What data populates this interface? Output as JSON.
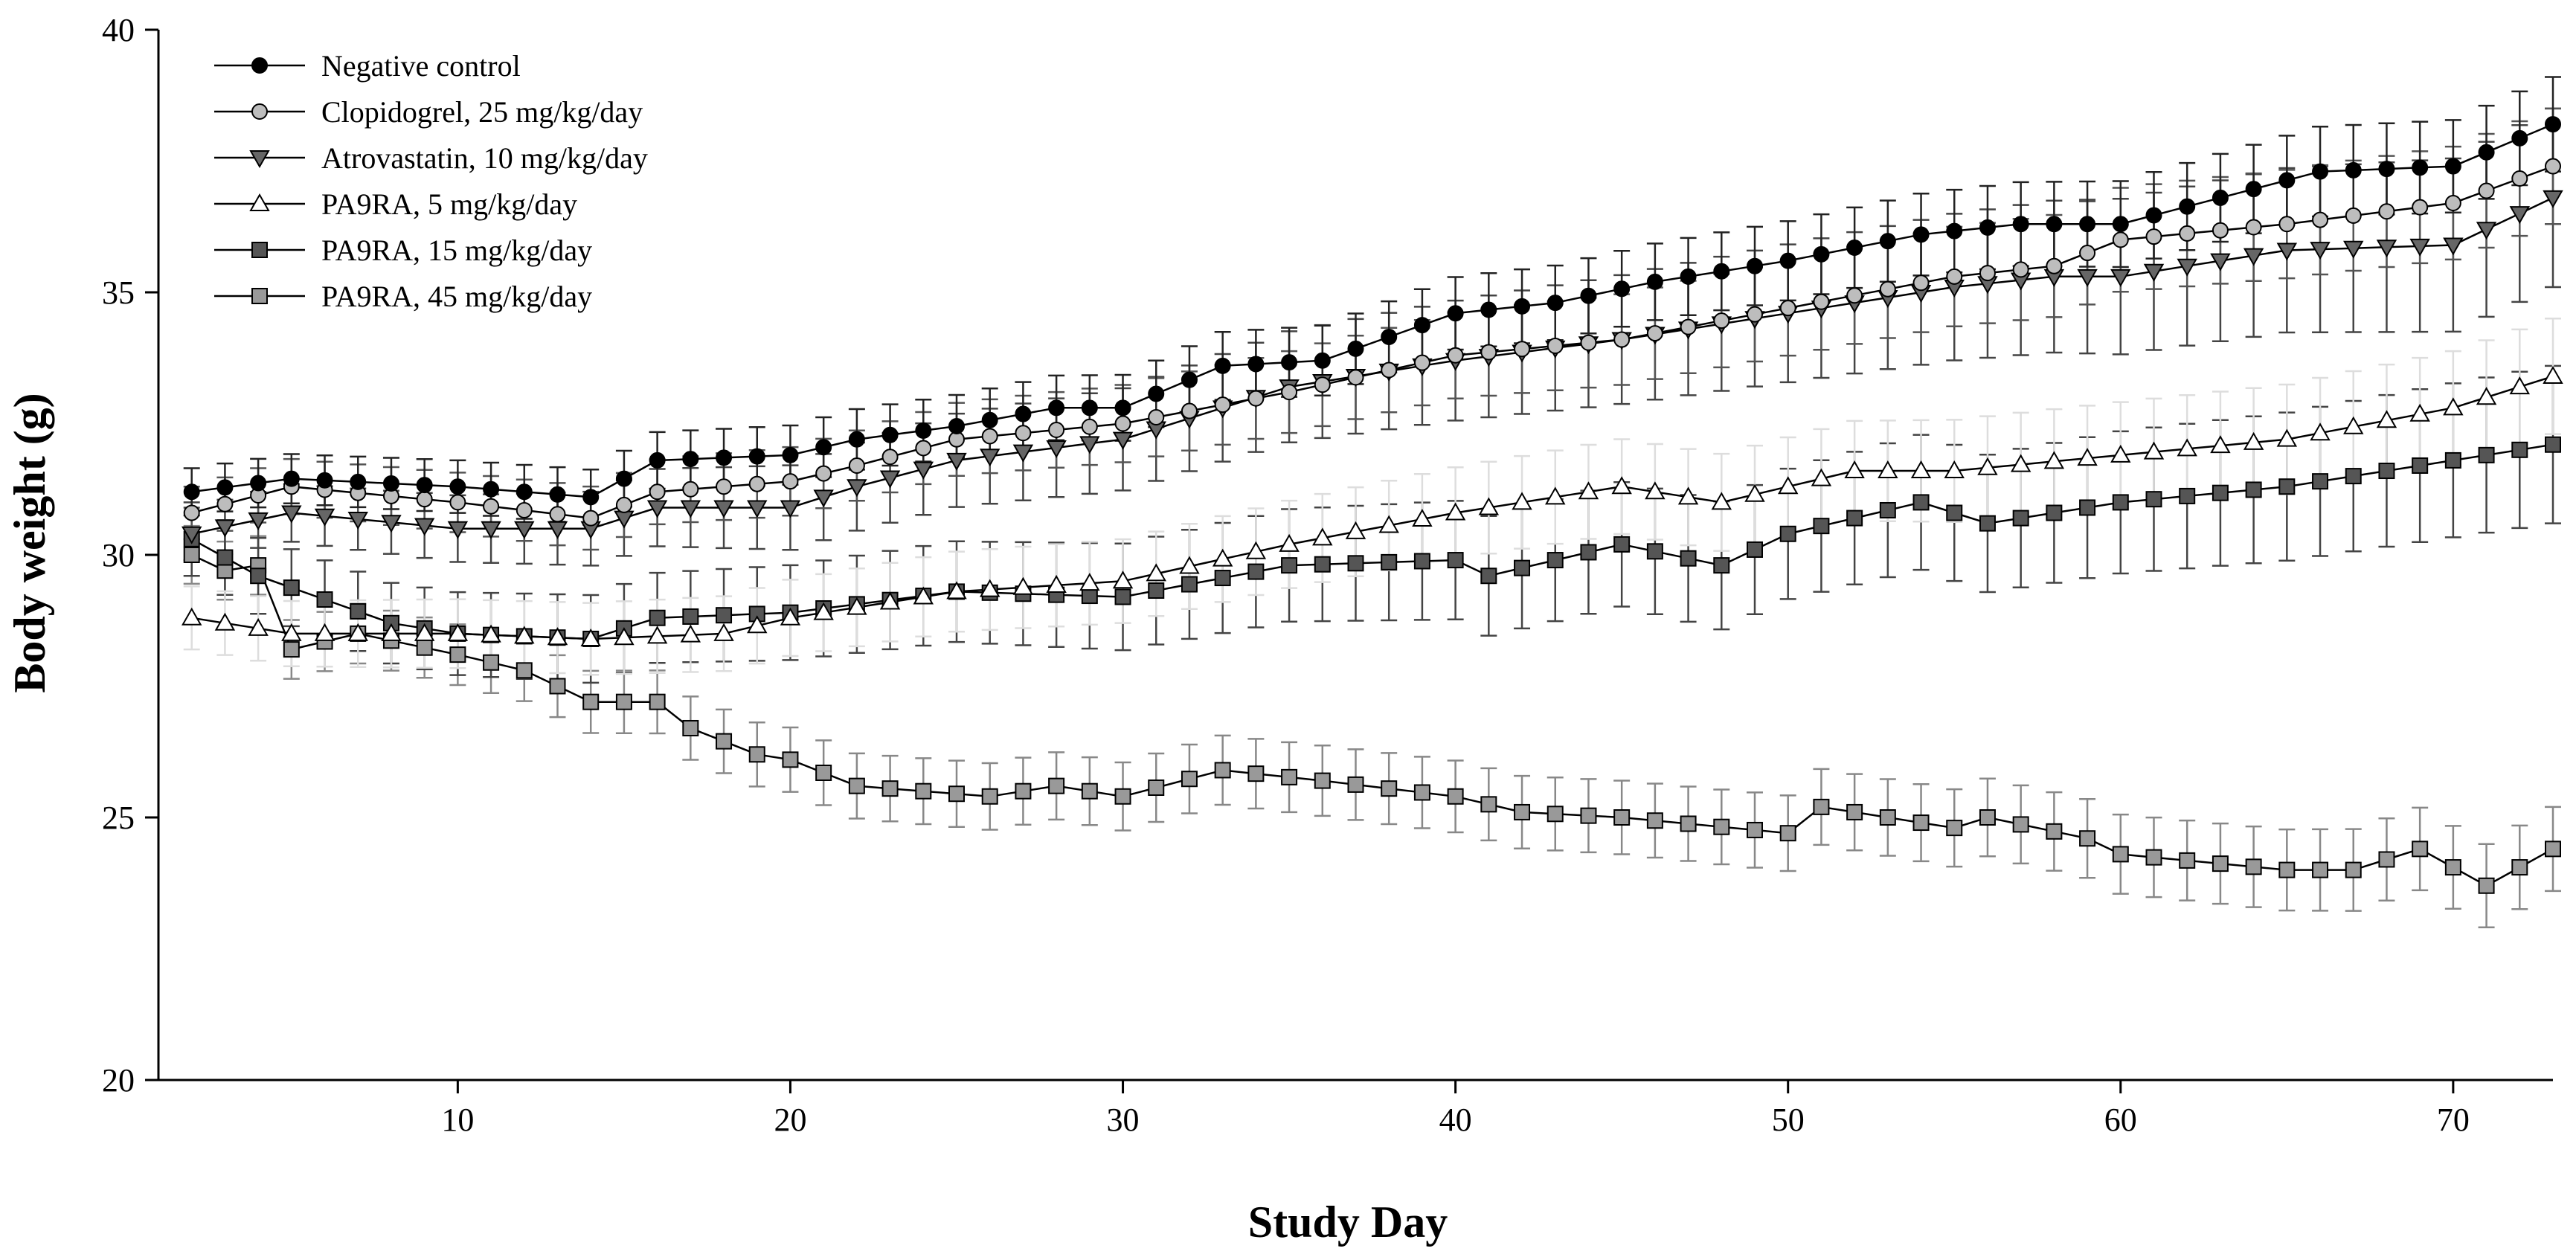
{
  "chart_data": {
    "type": "line",
    "title": "",
    "xlabel": "Study Day",
    "ylabel": "Body weight (g)",
    "xlim": [
      1,
      73
    ],
    "ylim": [
      20,
      40
    ],
    "xticks": [
      10,
      20,
      30,
      40,
      50,
      60,
      70
    ],
    "yticks": [
      20,
      25,
      30,
      35,
      40
    ],
    "xtick_labels": [
      "10",
      "20",
      "30",
      "40",
      "50",
      "60",
      "70"
    ],
    "ytick_labels": [
      "20",
      "25",
      "30",
      "35",
      "40"
    ],
    "legend_position": "top-left",
    "series": [
      {
        "name": "Negative control",
        "marker": "circle",
        "fill": "#000000",
        "error_color": "#222222",
        "start": 2,
        "end": 73,
        "err_start": 0.45,
        "err_end": 0.9,
        "anchors": [
          [
            2,
            31.2
          ],
          [
            5,
            31.45
          ],
          [
            10,
            31.3
          ],
          [
            14,
            31.1
          ],
          [
            16,
            31.8
          ],
          [
            20,
            31.9
          ],
          [
            22,
            32.2
          ],
          [
            25,
            32.45
          ],
          [
            28,
            32.8
          ],
          [
            30,
            32.8
          ],
          [
            33,
            33.6
          ],
          [
            36,
            33.7
          ],
          [
            40,
            34.6
          ],
          [
            43,
            34.8
          ],
          [
            46,
            35.2
          ],
          [
            50,
            35.6
          ],
          [
            54,
            36.1
          ],
          [
            57,
            36.3
          ],
          [
            60,
            36.3
          ],
          [
            66,
            37.3
          ],
          [
            70,
            37.4
          ],
          [
            73,
            38.2
          ]
        ]
      },
      {
        "name": "Clopidogrel, 25 mg/kg/day",
        "marker": "circle",
        "fill": "#bdbdbd",
        "error_color": "#555555",
        "start": 2,
        "end": 73,
        "err_start": 0.5,
        "err_end": 1.1,
        "anchors": [
          [
            2,
            30.8
          ],
          [
            5,
            31.3
          ],
          [
            10,
            31.0
          ],
          [
            14,
            30.7
          ],
          [
            16,
            31.2
          ],
          [
            20,
            31.4
          ],
          [
            22,
            31.7
          ],
          [
            25,
            32.2
          ],
          [
            30,
            32.5
          ],
          [
            35,
            33.1
          ],
          [
            40,
            33.8
          ],
          [
            45,
            34.1
          ],
          [
            50,
            34.7
          ],
          [
            55,
            35.3
          ],
          [
            58,
            35.5
          ],
          [
            60,
            36.0
          ],
          [
            65,
            36.3
          ],
          [
            70,
            36.7
          ],
          [
            73,
            37.4
          ]
        ]
      },
      {
        "name": "Atrovastatin, 10 mg/kg/day",
        "marker": "triangle-down",
        "fill": "#666666",
        "error_color": "#444444",
        "start": 2,
        "end": 73,
        "err_start": 0.5,
        "err_end": 1.7,
        "anchors": [
          [
            2,
            30.4
          ],
          [
            5,
            30.8
          ],
          [
            10,
            30.5
          ],
          [
            14,
            30.5
          ],
          [
            16,
            30.9
          ],
          [
            20,
            30.9
          ],
          [
            22,
            31.3
          ],
          [
            25,
            31.8
          ],
          [
            30,
            32.2
          ],
          [
            35,
            33.2
          ],
          [
            40,
            33.7
          ],
          [
            45,
            34.1
          ],
          [
            50,
            34.6
          ],
          [
            55,
            35.1
          ],
          [
            58,
            35.3
          ],
          [
            60,
            35.3
          ],
          [
            65,
            35.8
          ],
          [
            70,
            35.9
          ],
          [
            73,
            36.8
          ]
        ]
      },
      {
        "name": "PA9RA, 5 mg/kg/day",
        "marker": "triangle-up",
        "fill": "#ffffff",
        "error_color": "#dddddd",
        "start": 2,
        "end": 73,
        "err_start": 0.6,
        "err_end": 1.1,
        "anchors": [
          [
            2,
            28.8
          ],
          [
            5,
            28.5
          ],
          [
            10,
            28.5
          ],
          [
            14,
            28.4
          ],
          [
            18,
            28.5
          ],
          [
            20,
            28.8
          ],
          [
            25,
            29.3
          ],
          [
            30,
            29.5
          ],
          [
            35,
            30.2
          ],
          [
            40,
            30.8
          ],
          [
            45,
            31.3
          ],
          [
            48,
            31.0
          ],
          [
            52,
            31.6
          ],
          [
            55,
            31.6
          ],
          [
            60,
            31.9
          ],
          [
            65,
            32.2
          ],
          [
            70,
            32.8
          ],
          [
            73,
            33.4
          ]
        ]
      },
      {
        "name": "PA9RA, 15 mg/kg/day",
        "marker": "square",
        "fill": "#555555",
        "error_color": "#444444",
        "start": 2,
        "end": 73,
        "err_start": 0.7,
        "err_end": 1.5,
        "anchors": [
          [
            2,
            30.3
          ],
          [
            4,
            29.6
          ],
          [
            8,
            28.7
          ],
          [
            10,
            28.5
          ],
          [
            14,
            28.4
          ],
          [
            16,
            28.8
          ],
          [
            20,
            28.9
          ],
          [
            25,
            29.3
          ],
          [
            30,
            29.2
          ],
          [
            35,
            29.8
          ],
          [
            40,
            29.9
          ],
          [
            41,
            29.6
          ],
          [
            45,
            30.2
          ],
          [
            48,
            29.8
          ],
          [
            50,
            30.4
          ],
          [
            54,
            31.0
          ],
          [
            56,
            30.6
          ],
          [
            60,
            31.0
          ],
          [
            65,
            31.3
          ],
          [
            70,
            31.8
          ],
          [
            73,
            32.1
          ]
        ]
      },
      {
        "name": "PA9RA, 45 mg/kg/day",
        "marker": "square",
        "fill": "#999999",
        "error_color": "#888888",
        "start": 2,
        "end": 73,
        "err_start": 0.55,
        "err_end": 0.8,
        "anchors": [
          [
            2,
            30.0
          ],
          [
            3,
            29.7
          ],
          [
            4,
            29.8
          ],
          [
            5,
            28.2
          ],
          [
            7,
            28.5
          ],
          [
            10,
            28.1
          ],
          [
            12,
            27.8
          ],
          [
            14,
            27.2
          ],
          [
            16,
            27.2
          ],
          [
            17,
            26.7
          ],
          [
            19,
            26.2
          ],
          [
            20,
            26.1
          ],
          [
            22,
            25.6
          ],
          [
            26,
            25.4
          ],
          [
            28,
            25.6
          ],
          [
            30,
            25.4
          ],
          [
            33,
            25.9
          ],
          [
            36,
            25.7
          ],
          [
            40,
            25.4
          ],
          [
            42,
            25.1
          ],
          [
            45,
            25.0
          ],
          [
            50,
            24.7
          ],
          [
            51,
            25.2
          ],
          [
            55,
            24.8
          ],
          [
            56,
            25.0
          ],
          [
            59,
            24.6
          ],
          [
            60,
            24.3
          ],
          [
            65,
            24.0
          ],
          [
            67,
            24.0
          ],
          [
            69,
            24.4
          ],
          [
            71,
            23.7
          ],
          [
            73,
            24.4
          ]
        ]
      }
    ]
  }
}
